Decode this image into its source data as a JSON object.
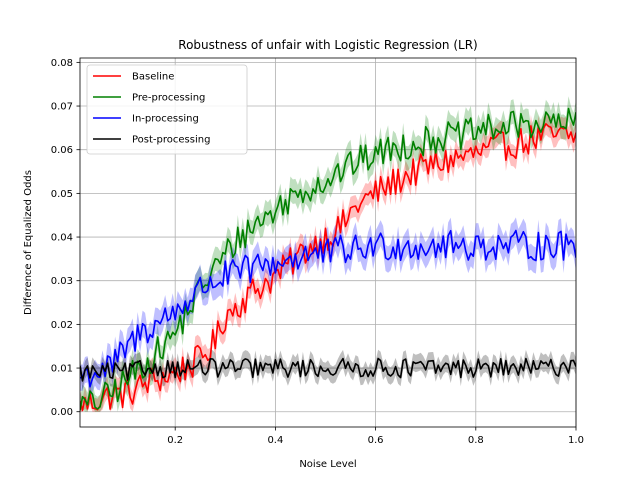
{
  "chart_data": {
    "type": "line",
    "title": "Robustness of unfair with Logistic Regression (LR)",
    "xlabel": "Noise Level",
    "ylabel": "Difference of Equalized Odds",
    "xlim": [
      0.01,
      1.0
    ],
    "ylim": [
      -0.0035,
      0.081
    ],
    "xticks": [
      0.2,
      0.4,
      0.6,
      0.8,
      1.0
    ],
    "xtick_labels": [
      "0.2",
      "0.4",
      "0.6",
      "0.8",
      "1.0"
    ],
    "yticks": [
      0.0,
      0.01,
      0.02,
      0.03,
      0.04,
      0.05,
      0.06,
      0.07,
      0.08
    ],
    "ytick_labels": [
      "0.00",
      "0.01",
      "0.02",
      "0.03",
      "0.04",
      "0.05",
      "0.06",
      "0.07",
      "0.08"
    ],
    "grid": true,
    "legend_position": "upper-left",
    "x_range": {
      "start": 0.01,
      "end": 1.0,
      "step": 0.005
    },
    "series": [
      {
        "name": "Baseline",
        "color": "#ff0000",
        "band_width": 0.0025,
        "anchors": [
          [
            0.01,
            0.001
          ],
          [
            0.03,
            0.002
          ],
          [
            0.05,
            0.003
          ],
          [
            0.08,
            0.004
          ],
          [
            0.1,
            0.004
          ],
          [
            0.12,
            0.005
          ],
          [
            0.15,
            0.007
          ],
          [
            0.18,
            0.008
          ],
          [
            0.2,
            0.009
          ],
          [
            0.22,
            0.01
          ],
          [
            0.25,
            0.012
          ],
          [
            0.28,
            0.016
          ],
          [
            0.3,
            0.022
          ],
          [
            0.33,
            0.025
          ],
          [
            0.36,
            0.028
          ],
          [
            0.4,
            0.031
          ],
          [
            0.43,
            0.034
          ],
          [
            0.46,
            0.037
          ],
          [
            0.5,
            0.04
          ],
          [
            0.53,
            0.042
          ],
          [
            0.56,
            0.047
          ],
          [
            0.6,
            0.05
          ],
          [
            0.63,
            0.052
          ],
          [
            0.66,
            0.054
          ],
          [
            0.7,
            0.056
          ],
          [
            0.73,
            0.057
          ],
          [
            0.76,
            0.058
          ],
          [
            0.8,
            0.059
          ],
          [
            0.83,
            0.06
          ],
          [
            0.86,
            0.061
          ],
          [
            0.9,
            0.062
          ],
          [
            0.93,
            0.063
          ],
          [
            0.96,
            0.063
          ],
          [
            1.0,
            0.063
          ]
        ],
        "noise": 0.0035
      },
      {
        "name": "Pre-processing",
        "color": "#008000",
        "band_width": 0.0028,
        "anchors": [
          [
            0.01,
            0.001
          ],
          [
            0.04,
            0.002
          ],
          [
            0.07,
            0.004
          ],
          [
            0.1,
            0.007
          ],
          [
            0.13,
            0.01
          ],
          [
            0.16,
            0.013
          ],
          [
            0.2,
            0.018
          ],
          [
            0.23,
            0.024
          ],
          [
            0.26,
            0.03
          ],
          [
            0.3,
            0.036
          ],
          [
            0.33,
            0.04
          ],
          [
            0.36,
            0.043
          ],
          [
            0.4,
            0.046
          ],
          [
            0.43,
            0.049
          ],
          [
            0.46,
            0.051
          ],
          [
            0.5,
            0.053
          ],
          [
            0.53,
            0.055
          ],
          [
            0.56,
            0.057
          ],
          [
            0.6,
            0.059
          ],
          [
            0.63,
            0.06
          ],
          [
            0.66,
            0.061
          ],
          [
            0.7,
            0.062
          ],
          [
            0.73,
            0.063
          ],
          [
            0.76,
            0.063
          ],
          [
            0.8,
            0.064
          ],
          [
            0.83,
            0.065
          ],
          [
            0.86,
            0.065
          ],
          [
            0.9,
            0.066
          ],
          [
            0.93,
            0.066
          ],
          [
            0.96,
            0.066
          ],
          [
            1.0,
            0.066
          ]
        ],
        "noise": 0.0035
      },
      {
        "name": "In-processing",
        "color": "#0000ff",
        "band_width": 0.003,
        "anchors": [
          [
            0.01,
            0.008
          ],
          [
            0.04,
            0.009
          ],
          [
            0.07,
            0.01
          ],
          [
            0.1,
            0.014
          ],
          [
            0.13,
            0.018
          ],
          [
            0.16,
            0.02
          ],
          [
            0.2,
            0.023
          ],
          [
            0.23,
            0.026
          ],
          [
            0.26,
            0.029
          ],
          [
            0.3,
            0.031
          ],
          [
            0.33,
            0.032
          ],
          [
            0.36,
            0.033
          ],
          [
            0.4,
            0.034
          ],
          [
            0.43,
            0.035
          ],
          [
            0.46,
            0.036
          ],
          [
            0.5,
            0.036
          ],
          [
            0.53,
            0.037
          ],
          [
            0.56,
            0.037
          ],
          [
            0.6,
            0.038
          ],
          [
            0.63,
            0.038
          ],
          [
            0.66,
            0.038
          ],
          [
            0.7,
            0.038
          ],
          [
            0.73,
            0.038
          ],
          [
            0.76,
            0.038
          ],
          [
            0.8,
            0.038
          ],
          [
            0.83,
            0.038
          ],
          [
            0.86,
            0.038
          ],
          [
            0.9,
            0.038
          ],
          [
            0.93,
            0.038
          ],
          [
            0.96,
            0.038
          ],
          [
            1.0,
            0.038
          ]
        ],
        "noise": 0.0035
      },
      {
        "name": "Post-processing",
        "color": "#000000",
        "band_width": 0.002,
        "anchors": [
          [
            0.01,
            0.009
          ],
          [
            0.05,
            0.009
          ],
          [
            0.1,
            0.009
          ],
          [
            0.15,
            0.01
          ],
          [
            0.2,
            0.01
          ],
          [
            0.25,
            0.01
          ],
          [
            0.3,
            0.01
          ],
          [
            0.35,
            0.01
          ],
          [
            0.4,
            0.01
          ],
          [
            0.45,
            0.01
          ],
          [
            0.5,
            0.01
          ],
          [
            0.55,
            0.01
          ],
          [
            0.6,
            0.01
          ],
          [
            0.65,
            0.01
          ],
          [
            0.7,
            0.01
          ],
          [
            0.75,
            0.01
          ],
          [
            0.8,
            0.01
          ],
          [
            0.85,
            0.01
          ],
          [
            0.9,
            0.01
          ],
          [
            0.95,
            0.01
          ],
          [
            1.0,
            0.011
          ]
        ],
        "noise": 0.0022
      }
    ]
  }
}
